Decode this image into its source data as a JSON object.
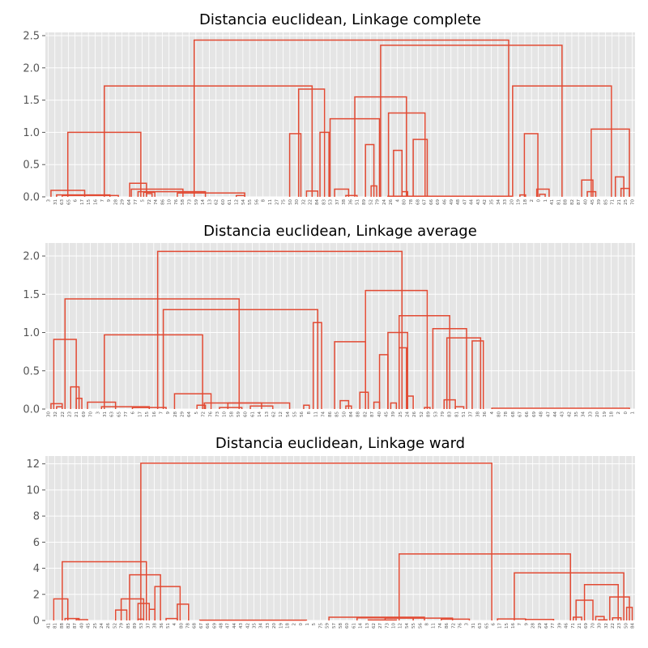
{
  "chart_data": [
    {
      "type": "dendrogram",
      "title": "Distancia euclidean, Linkage complete",
      "ylim": [
        0,
        2.55
      ],
      "yticks": [
        "0.0",
        "0.5",
        "1.0",
        "1.5",
        "2.0",
        "2.5"
      ],
      "ytick_values": [
        0,
        0.5,
        1.0,
        1.5,
        2.0,
        2.5
      ],
      "leaf_labels": [
        "3",
        "31",
        "63",
        "65",
        "6",
        "17",
        "15",
        "16",
        "7",
        "9",
        "28",
        "29",
        "64",
        "77",
        "5",
        "72",
        "74",
        "86",
        "10",
        "76",
        "58",
        "73",
        "59",
        "14",
        "13",
        "62",
        "60",
        "61",
        "12",
        "54",
        "55",
        "56",
        "8",
        "11",
        "27",
        "75",
        "50",
        "30",
        "32",
        "22",
        "84",
        "83",
        "53",
        "37",
        "38",
        "36",
        "51",
        "89",
        "52",
        "79",
        "24",
        "26",
        "4",
        "80",
        "78",
        "68",
        "67",
        "66",
        "69",
        "46",
        "49",
        "48",
        "47",
        "44",
        "43",
        "42",
        "35",
        "34",
        "33",
        "20",
        "19",
        "18",
        "2",
        "0",
        "1",
        "41",
        "81",
        "88",
        "82",
        "87",
        "40",
        "45",
        "39",
        "85",
        "71",
        "21",
        "25",
        "70"
      ],
      "merges": [
        {
          "h": 2.43,
          "x1": 26.0,
          "x2": 82.0
        },
        {
          "h": 2.35,
          "x1": 59.2,
          "x2": 91.5
        },
        {
          "h": 1.72,
          "x1": 10.0,
          "x2": 47.0
        },
        {
          "h": 1.72,
          "x1": 82.7,
          "x2": 100.3
        },
        {
          "h": 1.67,
          "x1": 44.6,
          "x2": 49.2
        },
        {
          "h": 1.55,
          "x1": 54.6,
          "x2": 63.8
        },
        {
          "h": 1.3,
          "x1": 60.6,
          "x2": 67.1
        },
        {
          "h": 1.21,
          "x1": 50.2,
          "x2": 59.0
        },
        {
          "h": 1.05,
          "x1": 96.7,
          "x2": 103.5
        },
        {
          "h": 1.0,
          "x1": 3.5,
          "x2": 16.5
        },
        {
          "h": 1.0,
          "x1": 48.4,
          "x2": 50.0
        },
        {
          "h": 0.98,
          "x1": 84.8,
          "x2": 87.2
        },
        {
          "h": 0.98,
          "x1": 43.0,
          "x2": 45.0
        },
        {
          "h": 0.89,
          "x1": 65.0,
          "x2": 67.5
        },
        {
          "h": 0.81,
          "x1": 56.5,
          "x2": 58.0
        },
        {
          "h": 0.72,
          "x1": 61.5,
          "x2": 63.0
        },
        {
          "h": 0.31,
          "x1": 101.0,
          "x2": 102.5
        },
        {
          "h": 0.26,
          "x1": 95.0,
          "x2": 97.0
        },
        {
          "h": 0.21,
          "x1": 14.5,
          "x2": 17.5
        },
        {
          "h": 0.17,
          "x1": 57.5,
          "x2": 58.5
        },
        {
          "h": 0.13,
          "x1": 102.0,
          "x2": 103.5
        },
        {
          "h": 0.12,
          "x1": 14.8,
          "x2": 24.0
        },
        {
          "h": 0.12,
          "x1": 87.0,
          "x2": 89.2
        },
        {
          "h": 0.12,
          "x1": 51.0,
          "x2": 53.5
        },
        {
          "h": 0.1,
          "x1": 0.5,
          "x2": 6.5
        },
        {
          "h": 0.09,
          "x1": 46.0,
          "x2": 48.0
        },
        {
          "h": 0.08,
          "x1": 96.0,
          "x2": 97.5
        },
        {
          "h": 0.08,
          "x1": 63.0,
          "x2": 64.0
        },
        {
          "h": 0.08,
          "x1": 16.0,
          "x2": 28.0
        },
        {
          "h": 0.07,
          "x1": 17.0,
          "x2": 19.0
        },
        {
          "h": 0.06,
          "x1": 23.0,
          "x2": 35.0
        },
        {
          "h": 0.05,
          "x1": 17.5,
          "x2": 18.5
        },
        {
          "h": 0.04,
          "x1": 87.5,
          "x2": 88.5
        },
        {
          "h": 0.03,
          "x1": 1.5,
          "x2": 11.0
        },
        {
          "h": 0.03,
          "x1": 84.0,
          "x2": 85.0
        },
        {
          "h": 0.02,
          "x1": 2.5,
          "x2": 12.5
        },
        {
          "h": 0.02,
          "x1": 33.5,
          "x2": 35.0
        },
        {
          "h": 0.02,
          "x1": 53.0,
          "x2": 55.0
        },
        {
          "h": 0.01,
          "x1": 60.5,
          "x2": 82.5
        }
      ]
    },
    {
      "type": "dendrogram",
      "title": "Distancia euclidean, Linkage average",
      "ylim": [
        0,
        2.17
      ],
      "yticks": [
        "0.0",
        "0.5",
        "1.0",
        "1.5",
        "2.0"
      ],
      "ytick_values": [
        0,
        0.5,
        1.0,
        1.5,
        2.0
      ],
      "leaf_labels": [
        "30",
        "32",
        "22",
        "23",
        "21",
        "69",
        "70",
        "3",
        "31",
        "63",
        "65",
        "77",
        "6",
        "17",
        "15",
        "16",
        "7",
        "9",
        "28",
        "29",
        "64",
        "5",
        "72",
        "76",
        "73",
        "10",
        "58",
        "59",
        "60",
        "61",
        "14",
        "13",
        "62",
        "12",
        "54",
        "55",
        "56",
        "8",
        "11",
        "74",
        "86",
        "85",
        "50",
        "84",
        "88",
        "82",
        "87",
        "40",
        "45",
        "39",
        "25",
        "24",
        "26",
        "52",
        "89",
        "53",
        "79",
        "83",
        "81",
        "51",
        "37",
        "38",
        "36",
        "4",
        "80",
        "78",
        "68",
        "67",
        "66",
        "69",
        "48",
        "47",
        "44",
        "43",
        "42",
        "35",
        "34",
        "33",
        "20",
        "19",
        "18",
        "2",
        "0",
        "1"
      ],
      "merges": [
        {
          "h": 2.06,
          "x1": 19.5,
          "x2": 63.0
        },
        {
          "h": 1.55,
          "x1": 56.5,
          "x2": 67.5
        },
        {
          "h": 1.44,
          "x1": 3.0,
          "x2": 34.0
        },
        {
          "h": 1.3,
          "x1": 20.5,
          "x2": 48.0
        },
        {
          "h": 1.22,
          "x1": 62.5,
          "x2": 71.5
        },
        {
          "h": 1.13,
          "x1": 47.2,
          "x2": 48.7
        },
        {
          "h": 1.05,
          "x1": 68.5,
          "x2": 74.5
        },
        {
          "h": 1.0,
          "x1": 60.5,
          "x2": 64.0
        },
        {
          "h": 0.97,
          "x1": 10.0,
          "x2": 27.5
        },
        {
          "h": 0.93,
          "x1": 71.0,
          "x2": 77.0
        },
        {
          "h": 0.91,
          "x1": 1.0,
          "x2": 5.0
        },
        {
          "h": 0.89,
          "x1": 75.5,
          "x2": 77.5
        },
        {
          "h": 0.88,
          "x1": 51.0,
          "x2": 56.5
        },
        {
          "h": 0.8,
          "x1": 62.5,
          "x2": 63.8
        },
        {
          "h": 0.71,
          "x1": 59.0,
          "x2": 60.5
        },
        {
          "h": 0.29,
          "x1": 4.0,
          "x2": 5.5
        },
        {
          "h": 0.22,
          "x1": 55.5,
          "x2": 57.0
        },
        {
          "h": 0.2,
          "x1": 22.5,
          "x2": 29.0
        },
        {
          "h": 0.17,
          "x1": 64.0,
          "x2": 65.0
        },
        {
          "h": 0.14,
          "x1": 5.0,
          "x2": 6.0
        },
        {
          "h": 0.12,
          "x1": 70.5,
          "x2": 72.5
        },
        {
          "h": 0.11,
          "x1": 52.0,
          "x2": 53.5
        },
        {
          "h": 0.09,
          "x1": 7.0,
          "x2": 12.0
        },
        {
          "h": 0.09,
          "x1": 58.0,
          "x2": 59.0
        },
        {
          "h": 0.08,
          "x1": 61.0,
          "x2": 62.0
        },
        {
          "h": 0.08,
          "x1": 27.8,
          "x2": 43.0
        },
        {
          "h": 0.08,
          "x1": 32.0,
          "x2": 38.0
        },
        {
          "h": 0.07,
          "x1": 0.5,
          "x2": 2.5
        },
        {
          "h": 0.05,
          "x1": 45.5,
          "x2": 46.5
        },
        {
          "h": 0.05,
          "x1": 26.5,
          "x2": 28.0
        },
        {
          "h": 0.04,
          "x1": 53.0,
          "x2": 54.0
        },
        {
          "h": 0.04,
          "x1": 36.0,
          "x2": 40.0
        },
        {
          "h": 0.03,
          "x1": 9.5,
          "x2": 18.0
        },
        {
          "h": 0.03,
          "x1": 72.5,
          "x2": 74.0
        },
        {
          "h": 0.03,
          "x1": 1.5,
          "x2": 2.5
        },
        {
          "h": 0.02,
          "x1": 15.0,
          "x2": 21.0
        },
        {
          "h": 0.02,
          "x1": 30.5,
          "x2": 34.5
        },
        {
          "h": 0.02,
          "x1": 67.0,
          "x2": 68.0
        },
        {
          "h": 0.01,
          "x1": 79.0,
          "x2": 103.5
        }
      ]
    },
    {
      "type": "dendrogram",
      "title": "Distancia euclidean, Linkage ward",
      "ylim": [
        0,
        12.6
      ],
      "yticks": [
        "0",
        "2",
        "4",
        "6",
        "8",
        "10",
        "12"
      ],
      "ytick_values": [
        0,
        2,
        4,
        6,
        8,
        10,
        12
      ],
      "leaf_labels": [
        "41",
        "81",
        "88",
        "82",
        "87",
        "40",
        "45",
        "25",
        "24",
        "26",
        "52",
        "79",
        "85",
        "89",
        "53",
        "37",
        "38",
        "36",
        "51",
        "4",
        "80",
        "78",
        "68",
        "67",
        "66",
        "69",
        "48",
        "47",
        "44",
        "43",
        "42",
        "35",
        "34",
        "33",
        "20",
        "19",
        "18",
        "2",
        "0",
        "1",
        "5",
        "75",
        "59",
        "57",
        "58",
        "60",
        "61",
        "14",
        "13",
        "62",
        "27",
        "73",
        "10",
        "12",
        "54",
        "55",
        "56",
        "8",
        "11",
        "74",
        "86",
        "72",
        "76",
        "3",
        "31",
        "63",
        "65",
        "6",
        "17",
        "15",
        "16",
        "7",
        "9",
        "28",
        "29",
        "64",
        "77",
        "39",
        "46",
        "71",
        "21",
        "69",
        "70",
        "30",
        "32",
        "22",
        "23",
        "50",
        "84"
      ],
      "merges": [
        {
          "h": 12.05,
          "x1": 16.5,
          "x2": 79.0
        },
        {
          "h": 5.1,
          "x1": 62.5,
          "x2": 93.0
        },
        {
          "h": 4.5,
          "x1": 2.5,
          "x2": 17.5
        },
        {
          "h": 3.65,
          "x1": 83.0,
          "x2": 102.5
        },
        {
          "h": 3.5,
          "x1": 14.5,
          "x2": 20.0
        },
        {
          "h": 2.75,
          "x1": 95.5,
          "x2": 101.5
        },
        {
          "h": 2.6,
          "x1": 19.0,
          "x2": 23.5
        },
        {
          "h": 1.8,
          "x1": 100.0,
          "x2": 103.5
        },
        {
          "h": 1.65,
          "x1": 1.0,
          "x2": 3.5
        },
        {
          "h": 1.65,
          "x1": 13.0,
          "x2": 17.0
        },
        {
          "h": 1.55,
          "x1": 94.0,
          "x2": 97.0
        },
        {
          "h": 1.3,
          "x1": 16.0,
          "x2": 18.0
        },
        {
          "h": 1.25,
          "x1": 23.0,
          "x2": 25.0
        },
        {
          "h": 1.0,
          "x1": 103.0,
          "x2": 104.0
        },
        {
          "h": 0.85,
          "x1": 18.0,
          "x2": 19.0
        },
        {
          "h": 0.8,
          "x1": 12.0,
          "x2": 14.0
        },
        {
          "h": 0.3,
          "x1": 97.5,
          "x2": 99.0
        },
        {
          "h": 0.25,
          "x1": 50.0,
          "x2": 67.0
        },
        {
          "h": 0.25,
          "x1": 93.5,
          "x2": 95.0
        },
        {
          "h": 0.2,
          "x1": 55.0,
          "x2": 65.0
        },
        {
          "h": 0.2,
          "x1": 100.5,
          "x2": 102.0
        },
        {
          "h": 0.18,
          "x1": 60.0,
          "x2": 72.0
        },
        {
          "h": 0.15,
          "x1": 21.0,
          "x2": 23.0
        },
        {
          "h": 0.15,
          "x1": 3.0,
          "x2": 5.5
        },
        {
          "h": 0.12,
          "x1": 80.0,
          "x2": 85.0
        },
        {
          "h": 0.1,
          "x1": 70.0,
          "x2": 75.0
        },
        {
          "h": 0.1,
          "x1": 16.0,
          "x2": 17.0
        },
        {
          "h": 0.08,
          "x1": 85.0,
          "x2": 90.0
        },
        {
          "h": 0.06,
          "x1": 5.0,
          "x2": 7.0
        },
        {
          "h": 0.05,
          "x1": 98.0,
          "x2": 99.5
        },
        {
          "h": 0.04,
          "x1": 57.0,
          "x2": 62.0
        },
        {
          "h": 0.02,
          "x1": 27.0,
          "x2": 46.0
        }
      ]
    }
  ]
}
